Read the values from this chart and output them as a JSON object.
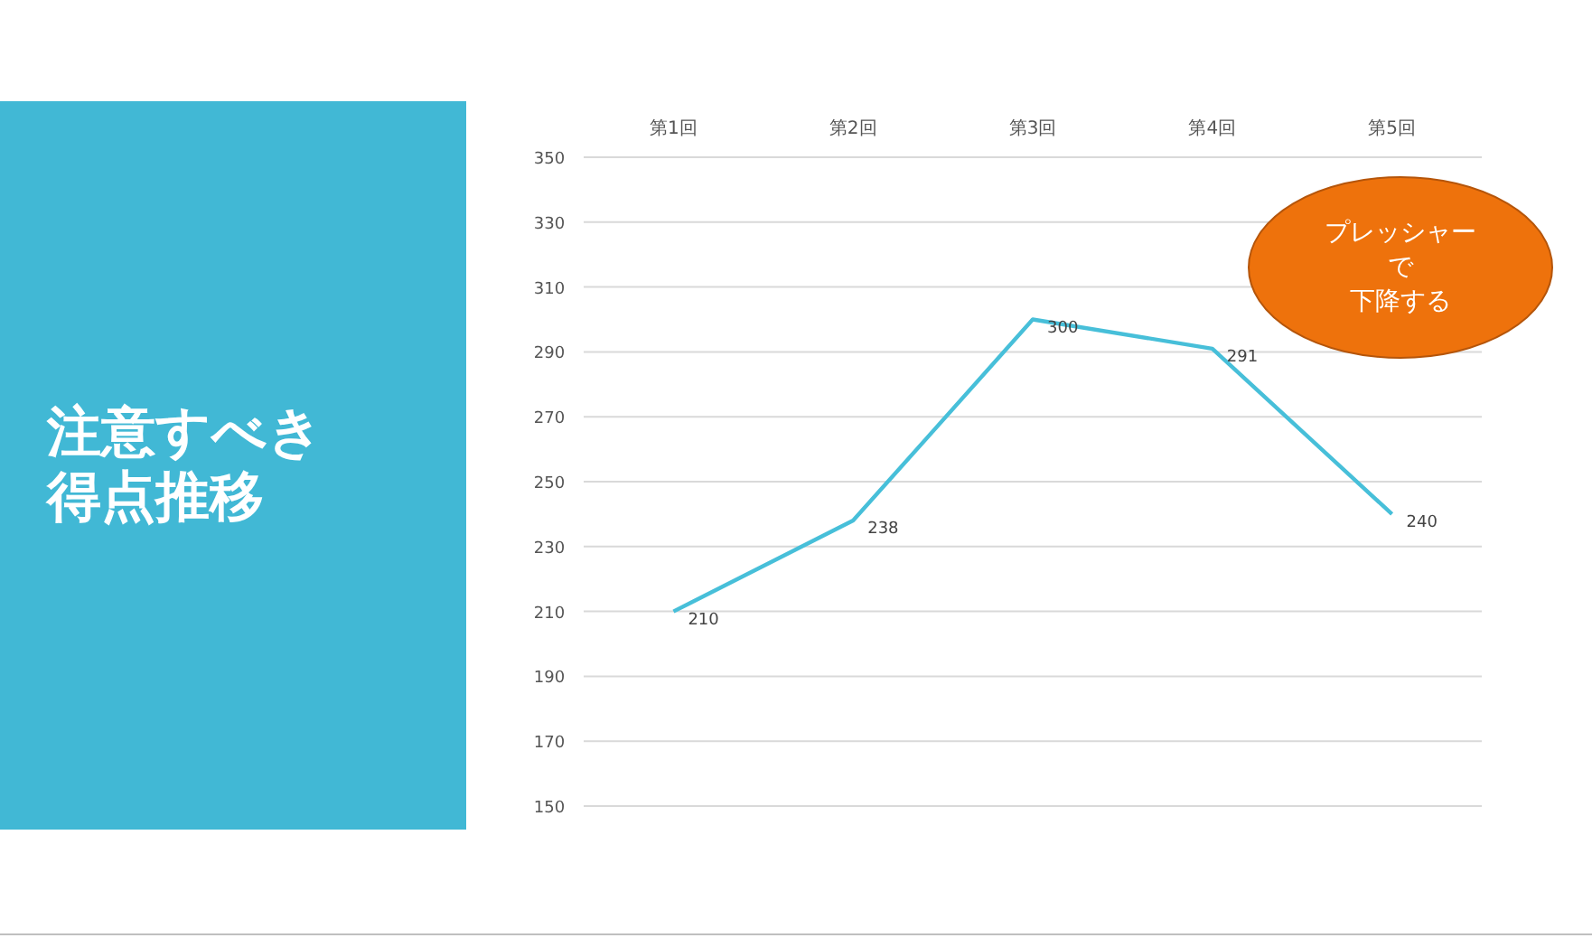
{
  "chart_data": {
    "type": "line",
    "title": "注意すべき得点推移",
    "categories": [
      "第1回",
      "第2回",
      "第3回",
      "第4回",
      "第5回"
    ],
    "series": [
      {
        "color": "#47bfd9",
        "values": [
          210,
          238,
          300,
          291,
          240
        ]
      }
    ],
    "ylim": [
      150,
      350
    ],
    "yticks": [
      150,
      170,
      190,
      210,
      230,
      250,
      270,
      290,
      310,
      330,
      350
    ],
    "grid": "y",
    "marker": "none",
    "line_style": "solid",
    "data_labels": true,
    "annotations": [
      "プレッシャーで下降する"
    ]
  }
}
